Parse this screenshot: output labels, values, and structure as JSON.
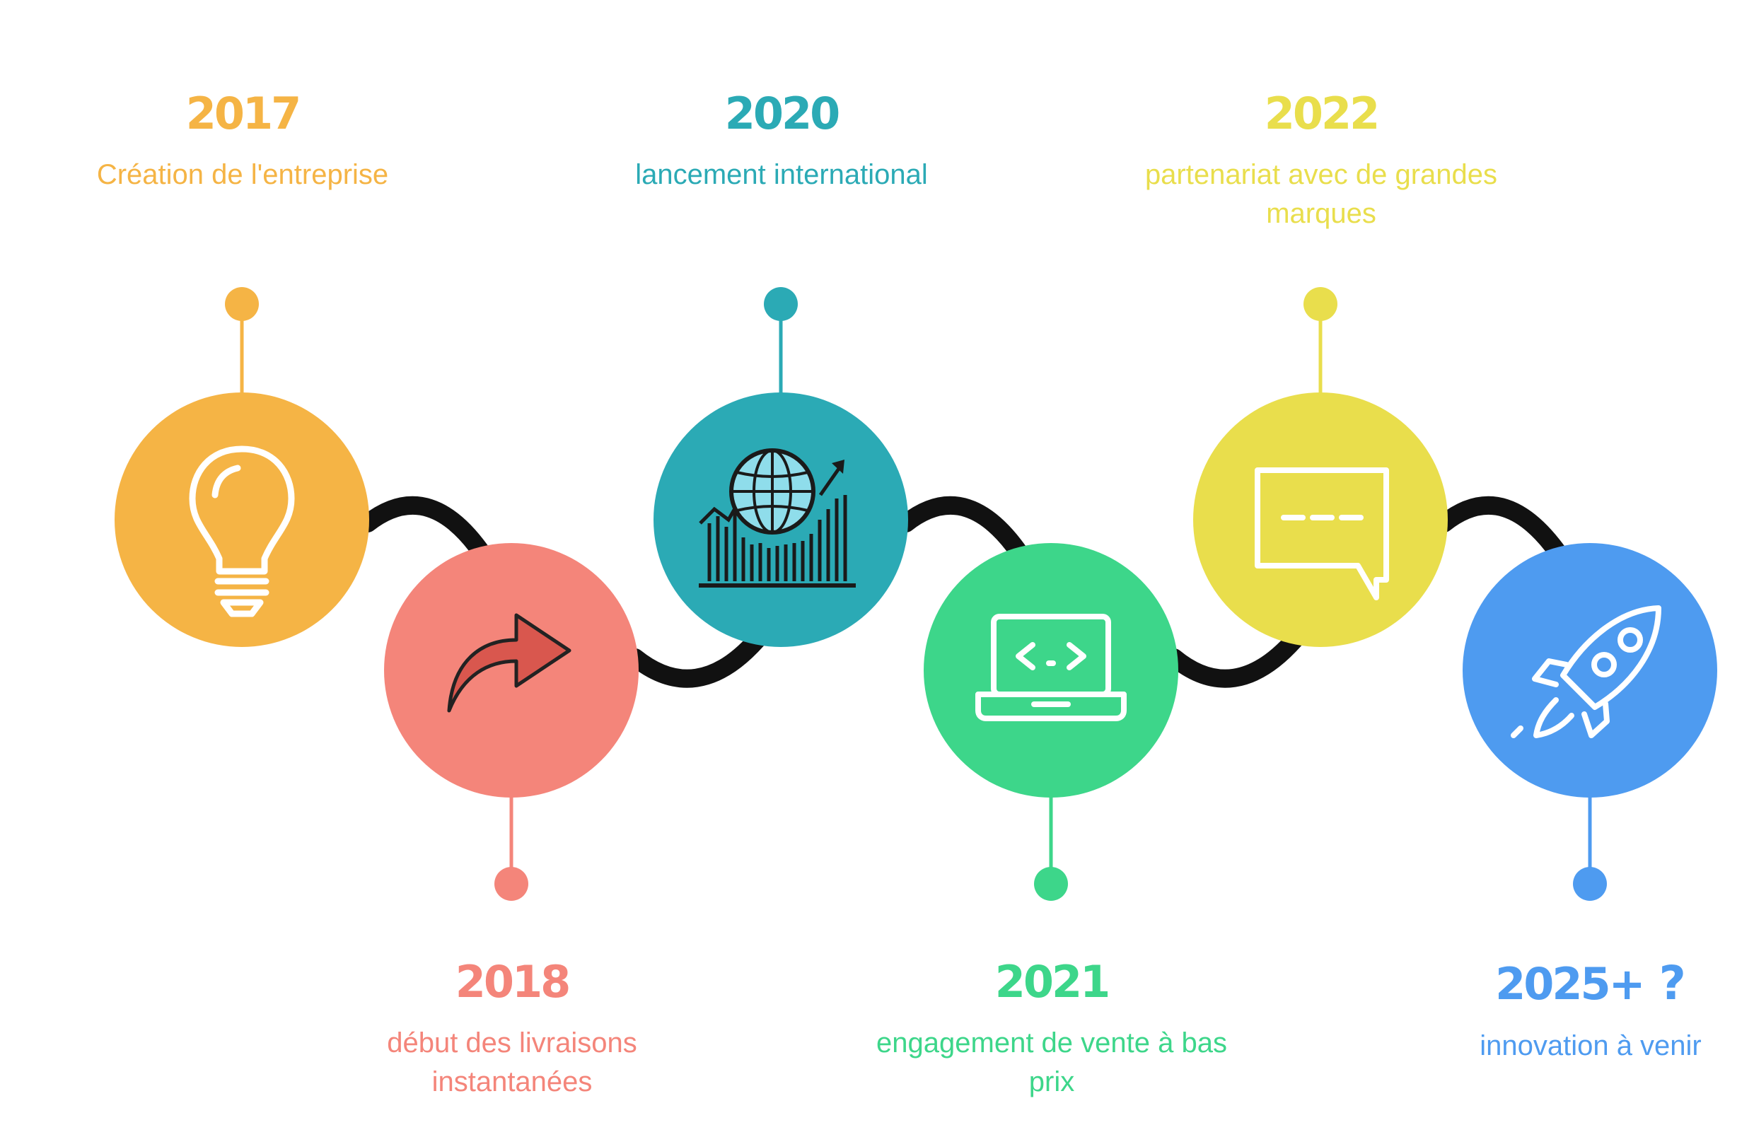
{
  "milestones": [
    {
      "year": "2017",
      "description": "Création de l'entreprise",
      "color": "#F5B445",
      "icon": "lightbulb-icon"
    },
    {
      "year": "2018",
      "description": "début des livraisons instantanées",
      "color": "#F4857A",
      "icon": "share-arrow-icon"
    },
    {
      "year": "2020",
      "description": "lancement international",
      "color": "#2BAAB5",
      "icon": "globe-growth-chart-icon"
    },
    {
      "year": "2021",
      "description": "engagement de vente à bas prix",
      "color": "#3DD68A",
      "icon": "laptop-code-icon"
    },
    {
      "year": "2022",
      "description": "partenariat avec de grandes marques",
      "color": "#E9DE4C",
      "icon": "chat-bubble-icon"
    },
    {
      "year": "2025+",
      "year_suffix": "?",
      "description": "innovation à venir",
      "color": "#4E9BF0",
      "icon": "rocket-icon"
    }
  ],
  "connector_color": "#111111"
}
